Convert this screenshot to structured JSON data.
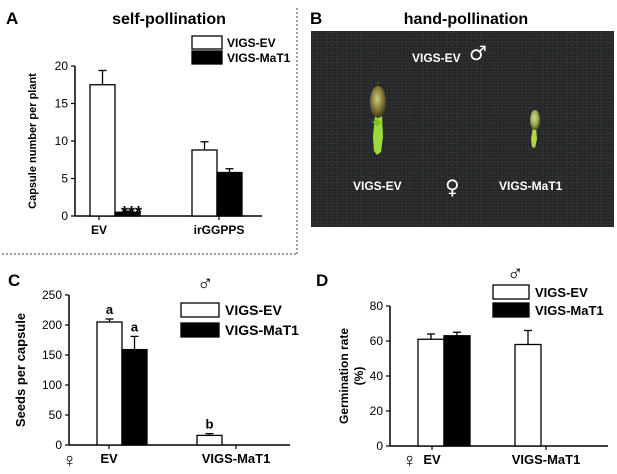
{
  "symbols": {
    "male": "♂",
    "female": "♀"
  },
  "panel_a": {
    "letter": "A",
    "title": "self-pollination",
    "significance": "***",
    "legend": [
      "VIGS-EV",
      "VIGS-MaT1"
    ]
  },
  "panel_b": {
    "letter": "B",
    "title": "hand-pollination",
    "photo_labels": {
      "top": "VIGS-EV",
      "left": "VIGS-EV",
      "right": "VIGS-MaT1"
    }
  },
  "panel_c": {
    "letter": "C",
    "legend": [
      "VIGS-EV",
      "VIGS-MaT1"
    ]
  },
  "panel_d": {
    "letter": "D",
    "legend": [
      "VIGS-EV",
      "VIGS-MaT1"
    ]
  },
  "colors": {
    "VIGS-EV": "#ffffff",
    "VIGS-MaT1": "#000000",
    "photo_background": "#25282a"
  },
  "chart_data": [
    {
      "panel": "A",
      "type": "bar",
      "title": "self-pollination",
      "ylabel": "Capsule number per plant",
      "xlabel": "",
      "categories": [
        "EV",
        "irGGPPS"
      ],
      "ylim": [
        0,
        20
      ],
      "yticks": [
        0,
        5,
        10,
        15,
        20
      ],
      "series": [
        {
          "name": "VIGS-EV",
          "values": [
            17.5,
            8.8
          ],
          "errors": [
            1.9,
            1.1
          ]
        },
        {
          "name": "VIGS-MaT1",
          "values": [
            0.5,
            5.8
          ],
          "errors": [
            0.15,
            0.5
          ]
        }
      ],
      "annotations": [
        {
          "category": "EV",
          "series": "VIGS-MaT1",
          "text": "***"
        }
      ],
      "legend": "top-right",
      "grid": false
    },
    {
      "panel": "C",
      "type": "bar",
      "ylabel": "Seeds per capsule",
      "xlabel": "",
      "categories": [
        "EV",
        "VIGS-MaT1"
      ],
      "ylim": [
        0,
        250
      ],
      "yticks": [
        0,
        50,
        100,
        150,
        200,
        250
      ],
      "series": [
        {
          "name": "VIGS-EV",
          "values": [
            205,
            16
          ],
          "errors": [
            5,
            3
          ]
        },
        {
          "name": "VIGS-MaT1",
          "values": [
            159,
            null
          ],
          "errors": [
            22,
            null
          ]
        }
      ],
      "annotations": [
        {
          "category": "EV",
          "series": "VIGS-EV",
          "text": "a"
        },
        {
          "category": "EV",
          "series": "VIGS-MaT1",
          "text": "a"
        },
        {
          "category": "VIGS-MaT1",
          "series": "VIGS-EV",
          "text": "b"
        }
      ],
      "legend": "top-right",
      "grid": false
    },
    {
      "panel": "D",
      "type": "bar",
      "ylabel": "Germination rate (%)",
      "xlabel": "",
      "categories": [
        "EV",
        "VIGS-MaT1"
      ],
      "ylim": [
        0,
        80
      ],
      "yticks": [
        0,
        20,
        40,
        60,
        80
      ],
      "series": [
        {
          "name": "VIGS-EV",
          "values": [
            61,
            58
          ],
          "errors": [
            3,
            8
          ]
        },
        {
          "name": "VIGS-MaT1",
          "values": [
            63,
            null
          ],
          "errors": [
            2,
            null
          ]
        }
      ],
      "legend": "top-right",
      "grid": false
    }
  ]
}
